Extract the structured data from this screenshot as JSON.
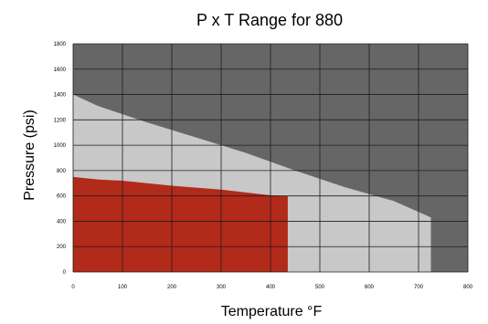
{
  "chart_data": {
    "type": "area",
    "title": "P x T Range for 880",
    "xlabel": "Temperature °F",
    "ylabel": "Pressure (psi)",
    "x_ticks": [
      "0",
      "100",
      "200",
      "300",
      "400",
      "500",
      "600",
      "700",
      "800"
    ],
    "y_ticks": [
      "0",
      "200",
      "400",
      "600",
      "800",
      "1000",
      "1200",
      "1400",
      "1600",
      "1800"
    ],
    "xlim": [
      0,
      800
    ],
    "ylim": [
      0,
      1800
    ],
    "grid": true,
    "legend": "none",
    "regions": [
      {
        "points": [
          [
            0,
            0
          ],
          [
            0,
            1400
          ],
          [
            50,
            1310
          ],
          [
            150,
            1180
          ],
          [
            250,
            1060
          ],
          [
            350,
            940
          ],
          [
            450,
            800
          ],
          [
            550,
            670
          ],
          [
            650,
            560
          ],
          [
            725,
            430
          ],
          [
            725,
            0
          ]
        ]
      },
      {
        "points": [
          [
            0,
            0
          ],
          [
            0,
            750
          ],
          [
            50,
            730
          ],
          [
            100,
            720
          ],
          [
            200,
            680
          ],
          [
            300,
            650
          ],
          [
            400,
            605
          ],
          [
            435,
            600
          ],
          [
            435,
            0
          ]
        ]
      }
    ],
    "colors": {
      "background": "#666666",
      "region_light": "#c8c8c8",
      "region_red": "#b22a1a",
      "grid": "#1e1e1e"
    }
  }
}
